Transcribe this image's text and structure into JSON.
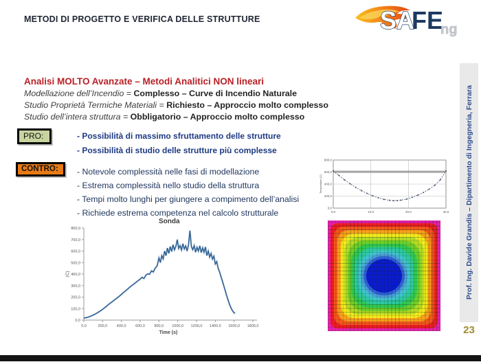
{
  "slide": {
    "title": "METODI DI PROGETTO E VERIFICA DELLE STRUTTURE",
    "page_number": "23",
    "sidebar_text": "Prof. Ing. Davide Grandis – Dipartimento di Ingegneria, Ferrara"
  },
  "logo": {
    "sa": "SA",
    "fe": "FE",
    "ng": "ng"
  },
  "content": {
    "heading": "Analisi MOLTO Avanzate – Metodi Analitici NON lineari",
    "definitions": [
      {
        "lead": "Modellazione dell’Incendio = ",
        "rest": "Complesso – Curve di Incendio Naturale"
      },
      {
        "lead": "Studio Proprietà Termiche Materiali = ",
        "rest": "Richiesto – Approccio molto complesso"
      },
      {
        "lead": "Studio dell’intera struttura = ",
        "rest": "Obbligatorio – Approccio molto complesso"
      }
    ],
    "pro": {
      "label": "PRO:",
      "items": [
        "- Possibilità di massimo sfruttamento delle strutture",
        "- Possibilità di studio delle strutture più complesse"
      ]
    },
    "contro": {
      "label": "CONTRO:",
      "items": [
        "- Notevole complessità nelle fasi di modellazione",
        "- Estrema complessità nello studio della struttura",
        "- Tempi molto lunghi per giungere a compimento dell’analisi",
        "- Richiede estrema competenza nel calcolo strutturale"
      ]
    }
  },
  "chart_data": [
    {
      "type": "line",
      "title": "Sonda",
      "xlabel": "Time (s)",
      "ylabel": "(C)",
      "xlim": [
        0,
        1800
      ],
      "ylim": [
        0,
        800
      ],
      "x_ticks": [
        "0,0",
        "200,0",
        "400,0",
        "600,0",
        "800,0",
        "1000,0",
        "1200,0",
        "1400,0",
        "1600,0",
        "1800,0"
      ],
      "y_ticks": [
        "0,0",
        "100,0",
        "200,0",
        "300,0",
        "400,0",
        "500,0",
        "600,0",
        "700,0",
        "800,0"
      ],
      "line_color": "#2d5e93",
      "grid": false,
      "points": [
        [
          0,
          18
        ],
        [
          30,
          22
        ],
        [
          60,
          30
        ],
        [
          90,
          40
        ],
        [
          120,
          52
        ],
        [
          150,
          66
        ],
        [
          180,
          82
        ],
        [
          210,
          100
        ],
        [
          240,
          120
        ],
        [
          270,
          140
        ],
        [
          300,
          158
        ],
        [
          330,
          178
        ],
        [
          360,
          196
        ],
        [
          390,
          216
        ],
        [
          420,
          238
        ],
        [
          450,
          258
        ],
        [
          480,
          280
        ],
        [
          510,
          300
        ],
        [
          540,
          318
        ],
        [
          570,
          338
        ],
        [
          600,
          356
        ],
        [
          620,
          372
        ],
        [
          640,
          362
        ],
        [
          660,
          390
        ],
        [
          680,
          402
        ],
        [
          700,
          398
        ],
        [
          720,
          428
        ],
        [
          740,
          418
        ],
        [
          760,
          452
        ],
        [
          780,
          470
        ],
        [
          800,
          540
        ],
        [
          815,
          500
        ],
        [
          830,
          560
        ],
        [
          845,
          532
        ],
        [
          860,
          600
        ],
        [
          875,
          560
        ],
        [
          890,
          626
        ],
        [
          905,
          580
        ],
        [
          920,
          640
        ],
        [
          935,
          596
        ],
        [
          950,
          655
        ],
        [
          965,
          610
        ],
        [
          980,
          640
        ],
        [
          995,
          700
        ],
        [
          1010,
          622
        ],
        [
          1025,
          648
        ],
        [
          1040,
          610
        ],
        [
          1055,
          664
        ],
        [
          1070,
          618
        ],
        [
          1085,
          645
        ],
        [
          1100,
          600
        ],
        [
          1115,
          656
        ],
        [
          1130,
          778
        ],
        [
          1145,
          640
        ],
        [
          1160,
          612
        ],
        [
          1175,
          648
        ],
        [
          1190,
          590
        ],
        [
          1205,
          632
        ],
        [
          1220,
          600
        ],
        [
          1235,
          646
        ],
        [
          1250,
          586
        ],
        [
          1265,
          628
        ],
        [
          1280,
          590
        ],
        [
          1295,
          636
        ],
        [
          1310,
          560
        ],
        [
          1325,
          600
        ],
        [
          1340,
          548
        ],
        [
          1355,
          580
        ],
        [
          1370,
          530
        ],
        [
          1385,
          556
        ],
        [
          1400,
          488
        ],
        [
          1415,
          508
        ],
        [
          1430,
          452
        ],
        [
          1445,
          420
        ],
        [
          1460,
          380
        ],
        [
          1475,
          340
        ],
        [
          1490,
          300
        ],
        [
          1505,
          258
        ],
        [
          1520,
          216
        ],
        [
          1535,
          176
        ],
        [
          1550,
          140
        ],
        [
          1565,
          110
        ],
        [
          1580,
          86
        ],
        [
          1595,
          68
        ],
        [
          1610,
          58
        ]
      ]
    },
    {
      "type": "line",
      "title": "",
      "xlabel": "",
      "ylabel": "Temperature (C)",
      "xlim": [
        0,
        30
      ],
      "ylim": [
        0,
        800
      ],
      "x_ticks": [
        "0,0",
        "10,0",
        "20,0",
        "30,0"
      ],
      "y_ticks": [
        "0,0",
        "200,0",
        "400,0",
        "600,0",
        "800,0"
      ],
      "line_color": "#44506e",
      "grid": true,
      "band_y": 605,
      "points": [
        [
          0,
          620
        ],
        [
          1.5,
          545
        ],
        [
          3,
          470
        ],
        [
          4.5,
          405
        ],
        [
          6,
          345
        ],
        [
          7.5,
          292
        ],
        [
          9,
          245
        ],
        [
          10.5,
          205
        ],
        [
          12,
          172
        ],
        [
          13.5,
          145
        ],
        [
          15,
          130
        ],
        [
          16,
          124
        ],
        [
          17,
          126
        ],
        [
          18,
          132
        ],
        [
          19.5,
          150
        ],
        [
          21,
          180
        ],
        [
          22.5,
          216
        ],
        [
          24,
          260
        ],
        [
          25.5,
          314
        ],
        [
          27,
          380
        ],
        [
          28.5,
          472
        ],
        [
          30,
          618
        ]
      ]
    },
    {
      "type": "heatmap",
      "description": "FEM cross-section temperature contour, hot edges to cool core",
      "rings": [
        {
          "color": "#e520ae",
          "inset": 0,
          "radius": "0px"
        },
        {
          "color": "#ed1c24",
          "inset": 4,
          "radius": "10px"
        },
        {
          "color": "#f4571a",
          "inset": 9,
          "radius": "13px"
        },
        {
          "color": "#f9a11a",
          "inset": 14,
          "radius": "16px"
        },
        {
          "color": "#f5e91d",
          "inset": 19,
          "radius": "19px"
        },
        {
          "color": "#b5dc24",
          "inset": 24,
          "radius": "22px"
        },
        {
          "color": "#6ecf29",
          "inset": 29,
          "radius": "25px"
        },
        {
          "color": "#31c853",
          "inset": 34,
          "radius": "27px"
        },
        {
          "color": "#2cc9a0",
          "inset": 39,
          "radius": "29px"
        },
        {
          "color": "#3fc3cf",
          "inset": 44,
          "radius": "31px"
        },
        {
          "color": "#4b9ddb",
          "inset": 48,
          "radius": "34px"
        },
        {
          "color": "#2f63d6",
          "inset": 52,
          "radius": "38px"
        },
        {
          "color": "#0b1bd0",
          "inset": 56,
          "radius": "50%"
        }
      ]
    }
  ]
}
